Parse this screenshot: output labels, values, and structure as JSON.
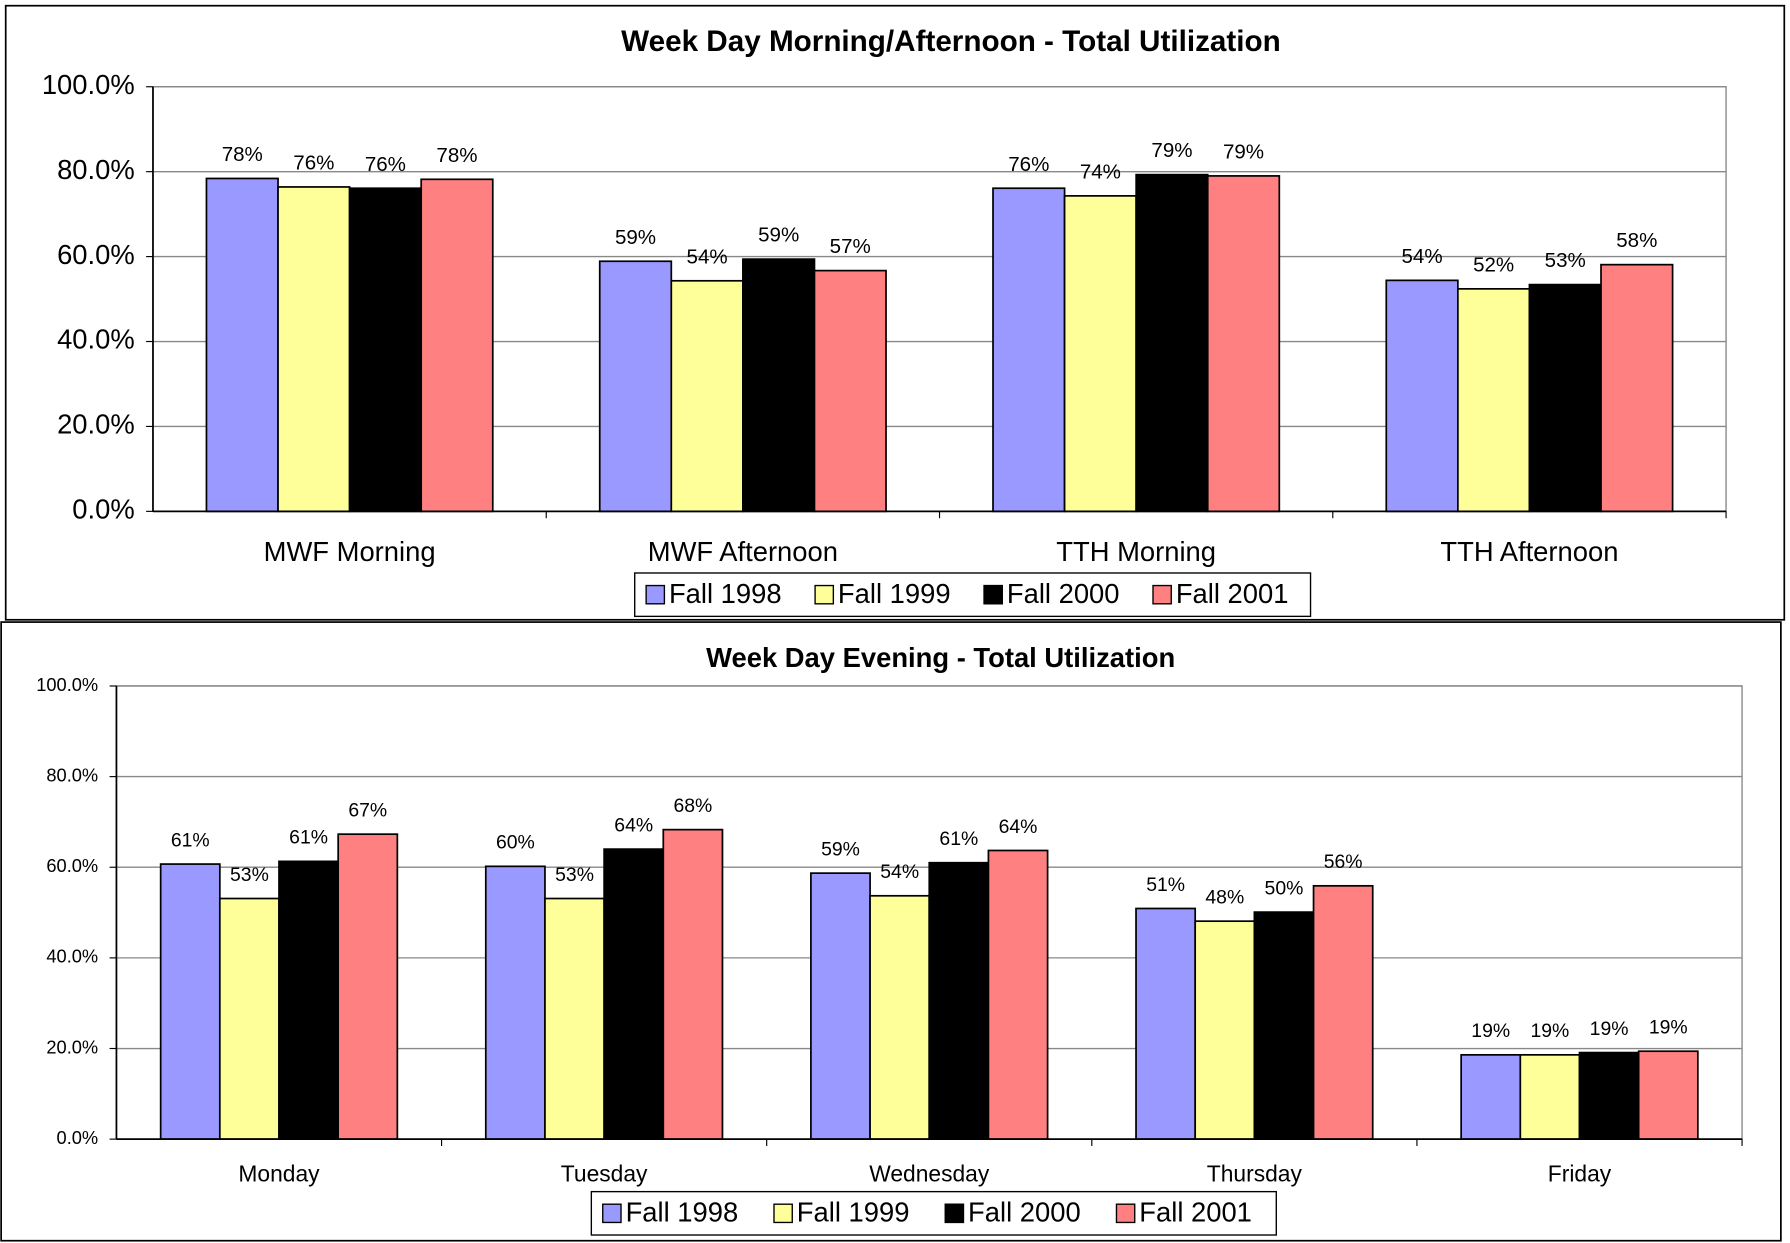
{
  "chart_data": [
    {
      "type": "bar",
      "title": "Week Day Morning/Afternoon - Total Utilization",
      "categories": [
        "MWF Morning",
        "MWF Afternoon",
        "TTH Morning",
        "TTH Afternoon"
      ],
      "series": [
        {
          "name": "Fall 1998",
          "color": "#9999ff",
          "values": [
            78.4,
            58.9,
            76.1,
            54.4
          ],
          "value_labels": [
            "78%",
            "59%",
            "76%",
            "54%"
          ]
        },
        {
          "name": "Fall 1999",
          "color": "#ffff99",
          "values": [
            76.4,
            54.3,
            74.3,
            52.4
          ],
          "value_labels": [
            "76%",
            "54%",
            "74%",
            "52%"
          ]
        },
        {
          "name": "Fall 2000",
          "color": "#000000",
          "values": [
            76.1,
            59.4,
            79.3,
            53.4
          ],
          "value_labels": [
            "76%",
            "59%",
            "79%",
            "53%"
          ]
        },
        {
          "name": "Fall 2001",
          "color": "#ff8080",
          "values": [
            78.2,
            56.7,
            79.0,
            58.1
          ],
          "value_labels": [
            "78%",
            "57%",
            "79%",
            "58%"
          ]
        }
      ],
      "ylim": [
        0,
        100
      ],
      "yticks": [
        {
          "value": 0,
          "label": "0.0%"
        },
        {
          "value": 20,
          "label": "20.0%"
        },
        {
          "value": 40,
          "label": "40.0%"
        },
        {
          "value": 60,
          "label": "60.0%"
        },
        {
          "value": 80,
          "label": "80.0%"
        },
        {
          "value": 100,
          "label": "100.0%"
        }
      ],
      "grid": true,
      "legend": "bottom"
    },
    {
      "type": "bar",
      "title": "Week Day Evening - Total Utilization",
      "categories": [
        "Monday",
        "Tuesday",
        "Wednesday",
        "Thursday",
        "Friday"
      ],
      "series": [
        {
          "name": "Fall 1998",
          "color": "#9999ff",
          "values": [
            60.7,
            60.2,
            58.7,
            50.9,
            18.6
          ],
          "value_labels": [
            "61%",
            "60%",
            "59%",
            "51%",
            "19%"
          ]
        },
        {
          "name": "Fall 1999",
          "color": "#ffff99",
          "values": [
            53.1,
            53.1,
            53.7,
            48.1,
            18.6
          ],
          "value_labels": [
            "53%",
            "53%",
            "54%",
            "48%",
            "19%"
          ]
        },
        {
          "name": "Fall 2000",
          "color": "#000000",
          "values": [
            61.3,
            64.0,
            61.0,
            50.1,
            19.1
          ],
          "value_labels": [
            "61%",
            "64%",
            "61%",
            "50%",
            "19%"
          ]
        },
        {
          "name": "Fall 2001",
          "color": "#ff8080",
          "values": [
            67.3,
            68.3,
            63.7,
            55.9,
            19.4
          ],
          "value_labels": [
            "67%",
            "68%",
            "64%",
            "56%",
            "19%"
          ]
        }
      ],
      "ylim": [
        0,
        100
      ],
      "yticks": [
        {
          "value": 0,
          "label": "0.0%"
        },
        {
          "value": 20,
          "label": "20.0%"
        },
        {
          "value": 40,
          "label": "40.0%"
        },
        {
          "value": 60,
          "label": "60.0%"
        },
        {
          "value": 80,
          "label": "80.0%"
        },
        {
          "value": 100,
          "label": "100.0%"
        }
      ],
      "grid": true,
      "legend": "bottom"
    }
  ]
}
